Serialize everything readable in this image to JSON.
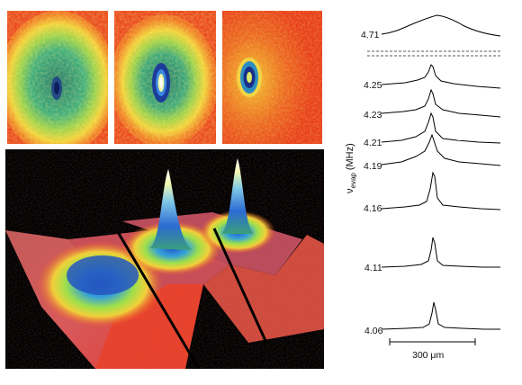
{
  "figure": {
    "panels": [
      {
        "id": "p1",
        "description_icon": "density-map"
      },
      {
        "id": "p2",
        "description_icon": "density-map"
      },
      {
        "id": "p3",
        "description_icon": "density-map"
      }
    ],
    "profile_labels": [
      "4.71",
      "4.25",
      "4.23",
      "4.21",
      "4.19",
      "4.16",
      "4.11",
      "4.06"
    ],
    "axis_label_main": "ν",
    "axis_label_sub": "evap",
    "axis_label_unit": "(MHz)",
    "scale_bar_label": "300 μm"
  }
}
